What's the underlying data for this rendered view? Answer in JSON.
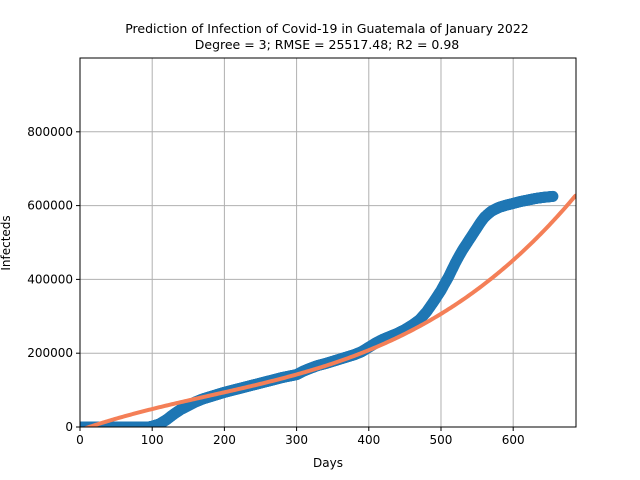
{
  "chart_data": {
    "type": "scatter",
    "title": "Prediction of Infection of Covid-19 in Guatemala of January 2022",
    "subtitle": "Degree = 3; RMSE = 25517.48; R2 = 0.98",
    "xlabel": "Days",
    "ylabel": "Infecteds",
    "xlim": [
      0,
      687
    ],
    "ylim": [
      0,
      1000000
    ],
    "x_ticks": [
      0,
      100,
      200,
      300,
      400,
      500,
      600
    ],
    "y_ticks": [
      0,
      200000,
      400000,
      600000,
      800000
    ],
    "x_tick_labels": [
      "0",
      "100",
      "200",
      "300",
      "400",
      "500",
      "600"
    ],
    "y_tick_labels": [
      "0",
      "200000",
      "400000",
      "600000",
      "800000"
    ],
    "grid": true,
    "legend": "none",
    "series": [
      {
        "kind": "scatter",
        "color": "#1f77b4",
        "points": [
          [
            0,
            0
          ],
          [
            20,
            0
          ],
          [
            40,
            0
          ],
          [
            60,
            0
          ],
          [
            80,
            0
          ],
          [
            95,
            0
          ],
          [
            100,
            2000
          ],
          [
            110,
            8000
          ],
          [
            120,
            20000
          ],
          [
            130,
            35000
          ],
          [
            140,
            48000
          ],
          [
            150,
            58000
          ],
          [
            160,
            68000
          ],
          [
            170,
            76000
          ],
          [
            180,
            82000
          ],
          [
            190,
            88000
          ],
          [
            200,
            94000
          ],
          [
            220,
            104000
          ],
          [
            240,
            114000
          ],
          [
            260,
            124000
          ],
          [
            280,
            134000
          ],
          [
            300,
            142000
          ],
          [
            310,
            152000
          ],
          [
            320,
            160000
          ],
          [
            330,
            167000
          ],
          [
            340,
            172000
          ],
          [
            350,
            178000
          ],
          [
            360,
            184000
          ],
          [
            370,
            190000
          ],
          [
            380,
            196000
          ],
          [
            390,
            204000
          ],
          [
            400,
            216000
          ],
          [
            410,
            228000
          ],
          [
            420,
            238000
          ],
          [
            430,
            246000
          ],
          [
            440,
            254000
          ],
          [
            450,
            264000
          ],
          [
            460,
            276000
          ],
          [
            470,
            290000
          ],
          [
            480,
            312000
          ],
          [
            490,
            340000
          ],
          [
            500,
            370000
          ],
          [
            505,
            388000
          ],
          [
            510,
            405000
          ],
          [
            515,
            425000
          ],
          [
            520,
            445000
          ],
          [
            525,
            463000
          ],
          [
            530,
            480000
          ],
          [
            535,
            495000
          ],
          [
            540,
            510000
          ],
          [
            545,
            525000
          ],
          [
            550,
            540000
          ],
          [
            555,
            555000
          ],
          [
            560,
            568000
          ],
          [
            565,
            577000
          ],
          [
            570,
            585000
          ],
          [
            580,
            595000
          ],
          [
            590,
            601000
          ],
          [
            600,
            606000
          ],
          [
            610,
            611000
          ],
          [
            620,
            615000
          ],
          [
            630,
            619000
          ],
          [
            640,
            622000
          ],
          [
            650,
            624000
          ],
          [
            655,
            625000
          ]
        ]
      },
      {
        "kind": "fit-line",
        "color": "#f47f57",
        "degree": 3,
        "coefficients": [
          -8420,
          680,
          -1.33,
          0.00246
        ]
      }
    ]
  }
}
